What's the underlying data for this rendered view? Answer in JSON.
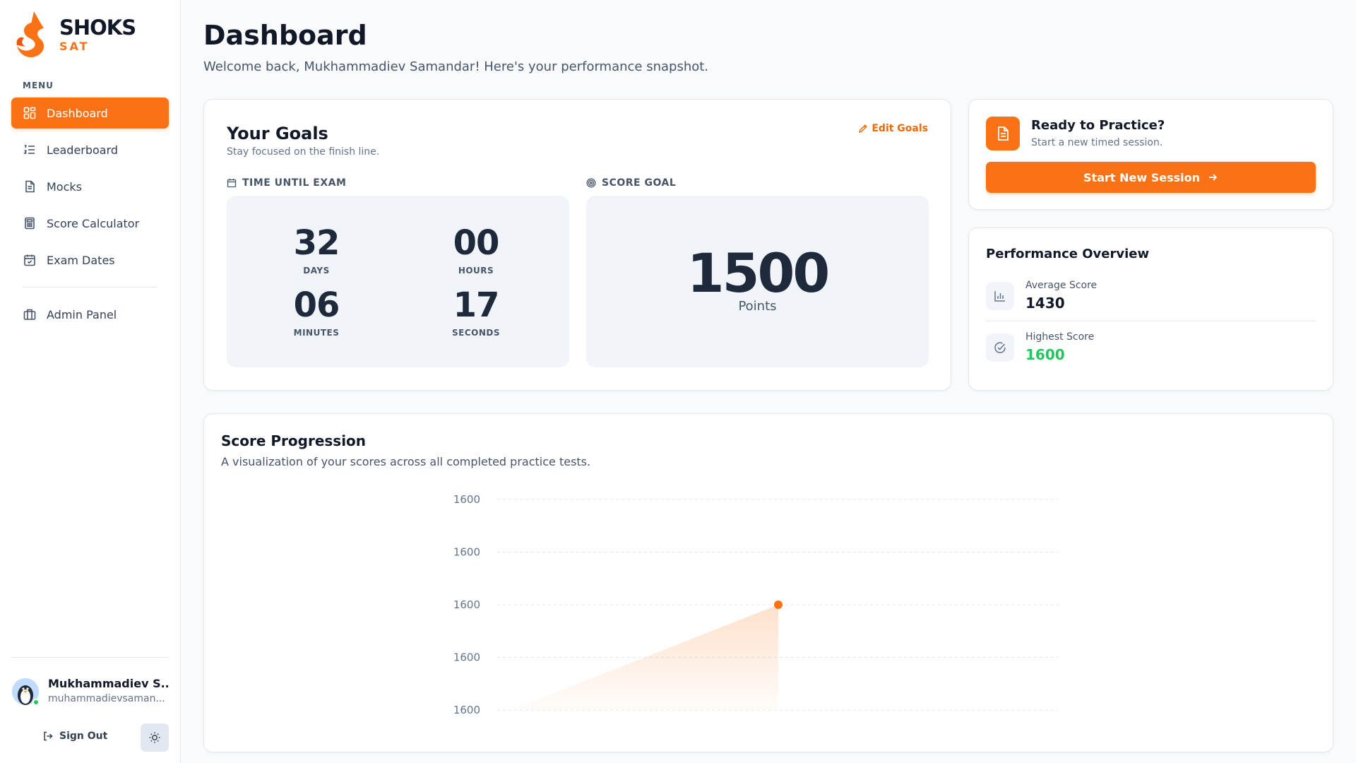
{
  "brand": {
    "name": "SHOKS",
    "sub": "SAT",
    "accent": "#f97316"
  },
  "sidebar": {
    "menu_label": "MENU",
    "items": [
      {
        "label": "Dashboard",
        "icon": "grid-icon",
        "active": true
      },
      {
        "label": "Leaderboard",
        "icon": "list-ordered-icon"
      },
      {
        "label": "Mocks",
        "icon": "document-icon"
      },
      {
        "label": "Score Calculator",
        "icon": "calculator-icon"
      },
      {
        "label": "Exam Dates",
        "icon": "calendar-check-icon"
      }
    ],
    "admin": {
      "label": "Admin Panel",
      "icon": "briefcase-icon"
    },
    "user": {
      "name": "Mukhammadiev S...",
      "email": "muhammadievsaman...",
      "status": "online"
    },
    "sign_out": "Sign Out",
    "theme_icon": "sun-icon"
  },
  "header": {
    "title": "Dashboard",
    "subtitle": "Welcome back, Mukhammadiev Samandar! Here's your performance snapshot."
  },
  "goals": {
    "title": "Your Goals",
    "subtitle": "Stay focused on the finish line.",
    "edit_label": "Edit Goals",
    "time_label": "TIME UNTIL EXAM",
    "countdown": {
      "days": "32",
      "days_label": "DAYS",
      "hours": "00",
      "hours_label": "HOURS",
      "minutes": "06",
      "minutes_label": "MINUTES",
      "seconds": "17",
      "seconds_label": "SECONDS"
    },
    "score_label": "SCORE GOAL",
    "score_value": "1500",
    "score_unit": "Points"
  },
  "practice": {
    "title": "Ready to Practice?",
    "subtitle": "Start a new timed session.",
    "button": "Start New Session"
  },
  "performance": {
    "title": "Performance Overview",
    "average_label": "Average Score",
    "average_value": "1430",
    "highest_label": "Highest Score",
    "highest_value": "1600",
    "highest_color": "#22c55e"
  },
  "progression": {
    "title": "Score Progression",
    "subtitle": "A visualization of your scores across all completed practice tests."
  },
  "chart_data": {
    "type": "area",
    "title": "",
    "xlabel": "",
    "ylabel": "",
    "y_ticks": [
      "1600",
      "1600",
      "1600",
      "1600",
      "1600"
    ],
    "values": [
      1600
    ],
    "grid": true,
    "color": "#f97316"
  }
}
